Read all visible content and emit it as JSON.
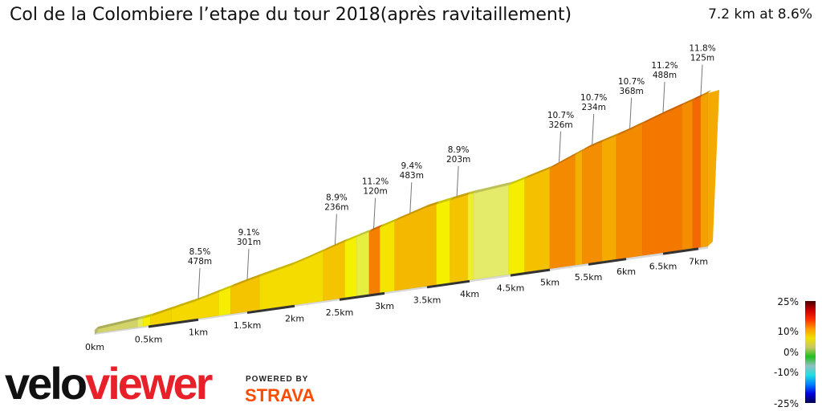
{
  "header": {
    "title": "Col de la Colombiere l’etape du tour 2018(après ravitaillement)",
    "summary": "7.2 km at 8.6%"
  },
  "chart_data": {
    "type": "area",
    "title": "Col de la Colombiere l’etape du tour 2018(après ravitaillement)",
    "total_distance_km": 7.2,
    "average_gradient_pct": 8.6,
    "x_ticks": [
      {
        "km": 0,
        "label": "0km"
      },
      {
        "km": 0.5,
        "label": "0.5km"
      },
      {
        "km": 1,
        "label": "1km"
      },
      {
        "km": 1.5,
        "label": "1.5km"
      },
      {
        "km": 2,
        "label": "2km"
      },
      {
        "km": 2.5,
        "label": "2.5km"
      },
      {
        "km": 3,
        "label": "3km"
      },
      {
        "km": 3.5,
        "label": "3.5km"
      },
      {
        "km": 4,
        "label": "4km"
      },
      {
        "km": 4.5,
        "label": "4.5km"
      },
      {
        "km": 5,
        "label": "5km"
      },
      {
        "km": 5.5,
        "label": "5.5km"
      },
      {
        "km": 6,
        "label": "6km"
      },
      {
        "km": 6.5,
        "label": "6.5km"
      },
      {
        "km": 7,
        "label": "7km"
      }
    ],
    "segments": [
      {
        "from": 0.0,
        "to": 0.4,
        "color": "#d2d46a"
      },
      {
        "from": 0.4,
        "to": 0.45,
        "color": "#e8ea60"
      },
      {
        "from": 0.45,
        "to": 0.52,
        "color": "#f5ee00"
      },
      {
        "from": 0.52,
        "to": 0.73,
        "color": "#f3d400"
      },
      {
        "from": 0.73,
        "to": 1.21,
        "color": "#f4d800"
      },
      {
        "from": 1.21,
        "to": 1.33,
        "color": "#f5ee00"
      },
      {
        "from": 1.33,
        "to": 1.63,
        "color": "#f4c400"
      },
      {
        "from": 1.63,
        "to": 2.32,
        "color": "#f4dc00"
      },
      {
        "from": 2.32,
        "to": 2.56,
        "color": "#f4c400"
      },
      {
        "from": 2.56,
        "to": 2.69,
        "color": "#f5f000"
      },
      {
        "from": 2.69,
        "to": 2.83,
        "color": "#e6ee40"
      },
      {
        "from": 2.83,
        "to": 2.95,
        "color": "#f47f00"
      },
      {
        "from": 2.95,
        "to": 3.12,
        "color": "#f4e400"
      },
      {
        "from": 3.12,
        "to": 3.61,
        "color": "#f4b800"
      },
      {
        "from": 3.61,
        "to": 3.77,
        "color": "#f5f000"
      },
      {
        "from": 3.77,
        "to": 3.98,
        "color": "#f4c400"
      },
      {
        "from": 3.98,
        "to": 4.05,
        "color": "#f0ec30"
      },
      {
        "from": 4.05,
        "to": 4.48,
        "color": "#e4ea6a"
      },
      {
        "from": 4.48,
        "to": 4.68,
        "color": "#f5ee00"
      },
      {
        "from": 4.68,
        "to": 5.0,
        "color": "#f4c000"
      },
      {
        "from": 5.0,
        "to": 5.33,
        "color": "#f48a00"
      },
      {
        "from": 5.33,
        "to": 5.42,
        "color": "#f4b000"
      },
      {
        "from": 5.42,
        "to": 5.68,
        "color": "#f48e00"
      },
      {
        "from": 5.68,
        "to": 5.87,
        "color": "#f4aa00"
      },
      {
        "from": 5.87,
        "to": 6.22,
        "color": "#f48a00"
      },
      {
        "from": 6.22,
        "to": 6.77,
        "color": "#f47800"
      },
      {
        "from": 6.77,
        "to": 6.92,
        "color": "#f48e00"
      },
      {
        "from": 6.92,
        "to": 7.05,
        "color": "#f46800"
      },
      {
        "from": 7.05,
        "to": 7.2,
        "color": "#f4a000"
      }
    ],
    "annotations": [
      {
        "km": 1.0,
        "gradient": "8.5%",
        "length": "478m"
      },
      {
        "km": 1.5,
        "gradient": "9.1%",
        "length": "301m"
      },
      {
        "km": 2.45,
        "gradient": "8.9%",
        "length": "236m"
      },
      {
        "km": 2.88,
        "gradient": "11.2%",
        "length": "120m"
      },
      {
        "km": 3.3,
        "gradient": "9.4%",
        "length": "483m"
      },
      {
        "km": 3.85,
        "gradient": "8.9%",
        "length": "203m"
      },
      {
        "km": 5.12,
        "gradient": "10.7%",
        "length": "326m"
      },
      {
        "km": 5.55,
        "gradient": "10.7%",
        "length": "234m"
      },
      {
        "km": 6.05,
        "gradient": "10.7%",
        "length": "368m"
      },
      {
        "km": 6.5,
        "gradient": "11.2%",
        "length": "488m"
      },
      {
        "km": 7.05,
        "gradient": "11.8%",
        "length": "125m"
      }
    ],
    "legend": {
      "labels": [
        "25%",
        "10%",
        "0%",
        "-10%",
        "-25%"
      ],
      "colors": [
        "#4a0000",
        "#cc0000",
        "#ff3000",
        "#ff9a00",
        "#f0e000",
        "#c8c860",
        "#20c020",
        "#90c0c0",
        "#20e0e0",
        "#0080ff",
        "#0000e0",
        "#000050"
      ]
    }
  },
  "branding": {
    "logo_part1": "velo",
    "logo_part2": "viewer",
    "powered_by": "POWERED BY",
    "strava": "STRAVA"
  }
}
